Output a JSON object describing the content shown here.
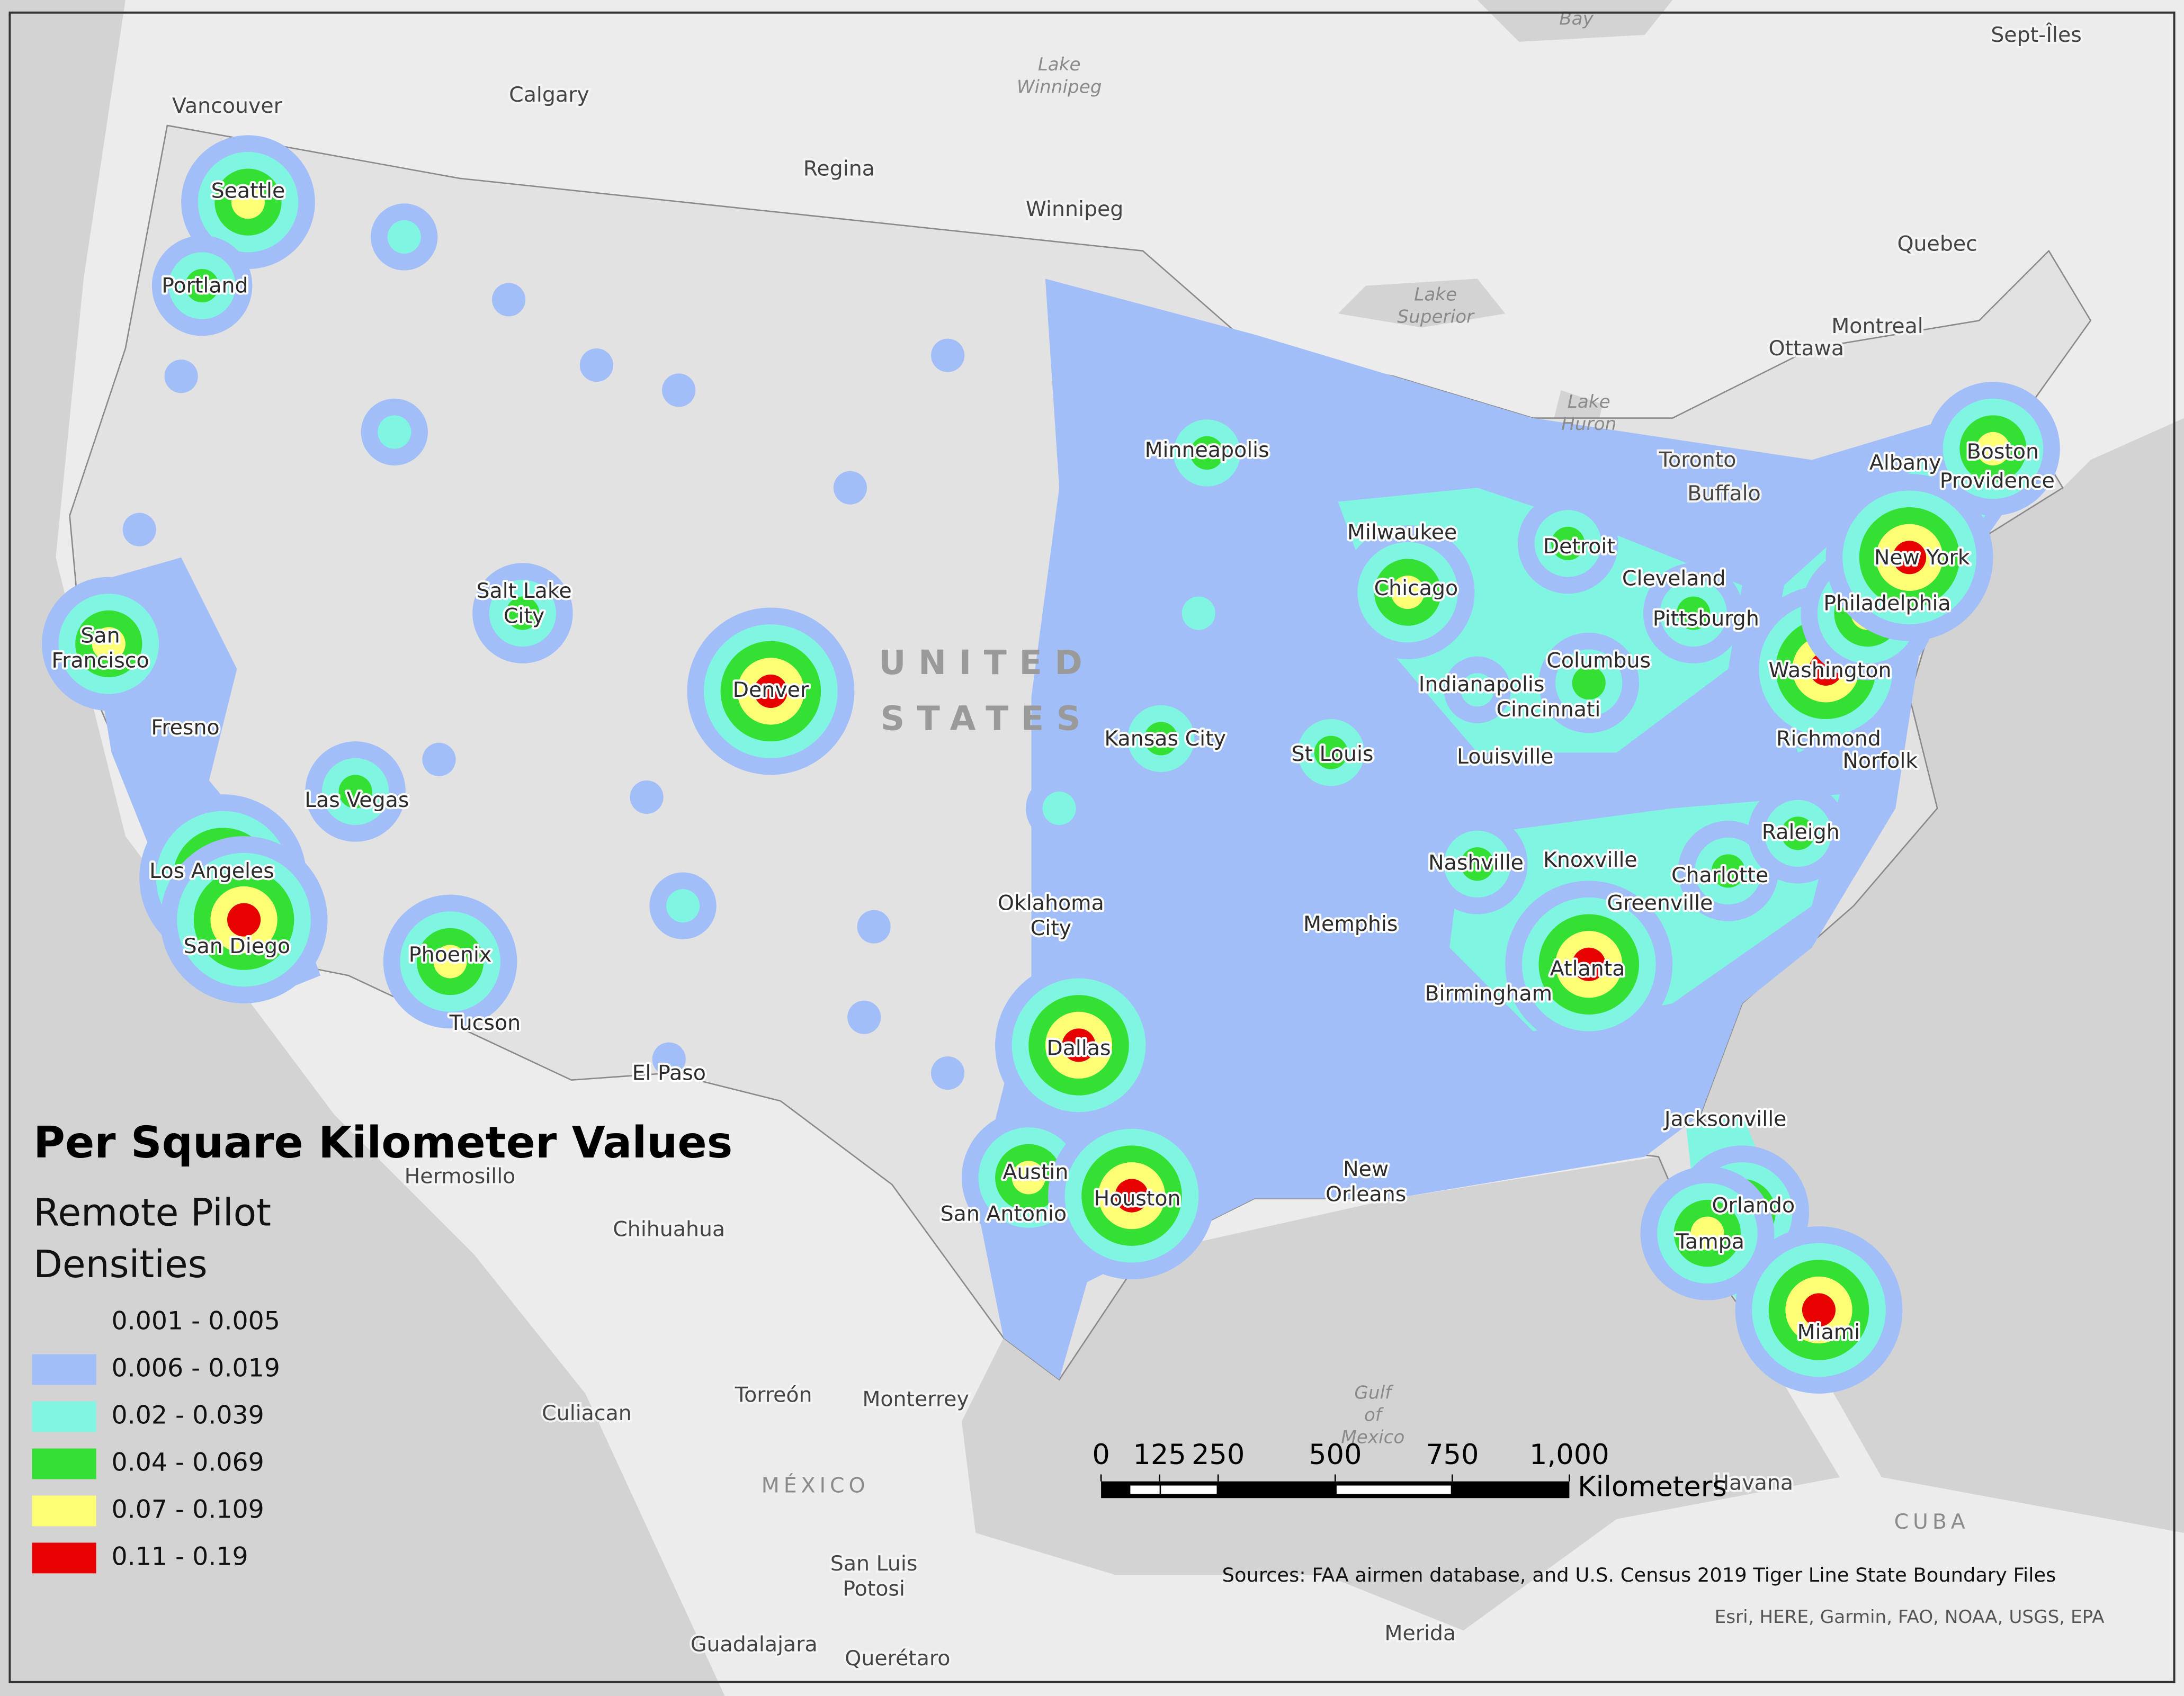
{
  "legend": {
    "title": "Per Square Kilometer Values",
    "subtitle": [
      "Remote Pilot",
      "Densities"
    ],
    "classes": [
      {
        "label": "0.001 - 0.005",
        "color": "#e4e4e4"
      },
      {
        "label": "0.006 - 0.019",
        "color": "#a1bef8"
      },
      {
        "label": "0.02 - 0.039",
        "color": "#80f5e2"
      },
      {
        "label": "0.04 - 0.069",
        "color": "#33e033"
      },
      {
        "label": "0.07 - 0.109",
        "color": "#ffff75"
      },
      {
        "label": "0.11 - 0.19",
        "color": "#e60000"
      }
    ]
  },
  "scale_bar": {
    "ticks": [
      0,
      125,
      250,
      500,
      750,
      {
        "value": 1000,
        "label": "1,000"
      }
    ],
    "unit": "Kilometers"
  },
  "sources": "Sources: FAA airmen database,  and U.S. Census 2019 Tiger Line State Boundary Files",
  "attribution": "Esri, HERE, Garmin, FAO, NOAA, USGS, EPA",
  "places": {
    "us": [
      "Seattle",
      "Portland",
      [
        "San",
        "Francisco"
      ],
      "Fresno",
      "Las Vegas",
      "Los Angeles",
      "San Diego",
      "Phoenix",
      "Tucson",
      "El Paso",
      [
        "Salt Lake",
        "City"
      ],
      "Denver",
      "Kansas City",
      "St Louis",
      "Minneapolis",
      [
        "Oklahoma",
        "City"
      ],
      "Dallas",
      "Austin",
      "San Antonio",
      "Houston",
      [
        "New",
        "Orleans"
      ],
      "Memphis",
      "Nashville",
      "Knoxville",
      "Birmingham",
      "Atlanta",
      "Chicago",
      "Milwaukee",
      "Detroit",
      "Cleveland",
      "Pittsburgh",
      "Columbus",
      "Indianapolis",
      "Cincinnati",
      "Louisville",
      "Charlotte",
      "Greenville",
      "Raleigh",
      "Richmond",
      "Norfolk",
      "Washington",
      "Philadelphia",
      "New York",
      "Albany",
      "Boston",
      "Providence",
      "Jacksonville",
      "Orlando",
      "Tampa",
      "Miami"
    ],
    "other": [
      "Vancouver",
      "Calgary",
      "Regina",
      "Winnipeg",
      "Quebec",
      "Montreal",
      "Ottawa",
      "Toronto",
      "Buffalo",
      "Sept-Îles",
      "Hermosillo",
      "Chihuahua",
      "Culiacan",
      "Torreón",
      "Monterrey",
      [
        "San Luis",
        "Potosi"
      ],
      "Guadalajara",
      "Querétaro",
      "Merida",
      "Havana"
    ],
    "water": [
      "Bay",
      [
        "Lake",
        "Winnipeg"
      ],
      [
        "Lake",
        "Superior"
      ],
      [
        "Lake",
        "Huron"
      ],
      [
        "Gulf",
        "of",
        "Mexico"
      ]
    ],
    "country": [
      [
        "UNITED",
        "STATES"
      ],
      "MÉXICO",
      "CUBA"
    ]
  }
}
